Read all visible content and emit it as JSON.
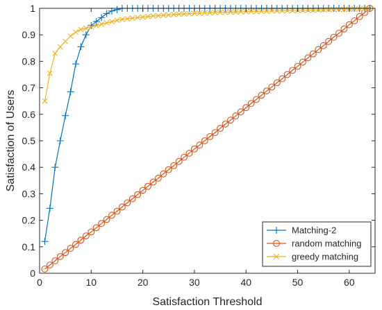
{
  "chart_data": {
    "type": "line",
    "xlabel": "Satisfaction Threshold",
    "ylabel": "Satisfaction of Users",
    "xlim": [
      0,
      65
    ],
    "ylim": [
      0,
      1
    ],
    "xticks": [
      0,
      10,
      20,
      30,
      40,
      50,
      60
    ],
    "yticks": [
      0,
      0.1,
      0.2,
      0.3,
      0.4,
      0.5,
      0.6,
      0.7,
      0.8,
      0.9,
      1
    ],
    "ytick_labels": [
      "0",
      "0.1",
      "0.2",
      "0.3",
      "0.4",
      "0.5",
      "0.6",
      "0.7",
      "0.8",
      "0.9",
      "1"
    ],
    "grid": false,
    "legend_position": "bottom-right",
    "series": [
      {
        "name": "Matching-2",
        "color": "#0072BD",
        "marker": "plus",
        "x": [
          1,
          2,
          3,
          4,
          5,
          6,
          7,
          8,
          9,
          10,
          11,
          12,
          13,
          14,
          15,
          16,
          17,
          18,
          19,
          20,
          21,
          22,
          23,
          24,
          25,
          26,
          27,
          28,
          29,
          30,
          31,
          32,
          33,
          34,
          35,
          36,
          37,
          38,
          39,
          40,
          41,
          42,
          43,
          44,
          45,
          46,
          47,
          48,
          49,
          50,
          51,
          52,
          53,
          54,
          55,
          56,
          57,
          58,
          59,
          60,
          61,
          62,
          63,
          64
        ],
        "y": [
          0.12,
          0.245,
          0.4,
          0.5,
          0.595,
          0.685,
          0.79,
          0.855,
          0.9,
          0.935,
          0.95,
          0.965,
          0.98,
          0.99,
          0.995,
          1,
          1,
          1,
          1,
          1,
          1,
          1,
          1,
          1,
          1,
          1,
          1,
          1,
          1,
          1,
          1,
          1,
          1,
          1,
          1,
          1,
          1,
          1,
          1,
          1,
          1,
          1,
          1,
          1,
          1,
          1,
          1,
          1,
          1,
          1,
          1,
          1,
          1,
          1,
          1,
          1,
          1,
          1,
          1,
          1,
          1,
          1,
          1,
          1
        ]
      },
      {
        "name": "random matching",
        "color": "#D95319",
        "marker": "circle",
        "x": [
          1,
          2,
          3,
          4,
          5,
          6,
          7,
          8,
          9,
          10,
          11,
          12,
          13,
          14,
          15,
          16,
          17,
          18,
          19,
          20,
          21,
          22,
          23,
          24,
          25,
          26,
          27,
          28,
          29,
          30,
          31,
          32,
          33,
          34,
          35,
          36,
          37,
          38,
          39,
          40,
          41,
          42,
          43,
          44,
          45,
          46,
          47,
          48,
          49,
          50,
          51,
          52,
          53,
          54,
          55,
          56,
          57,
          58,
          59,
          60,
          61,
          62,
          63,
          64
        ],
        "y": [
          0.016,
          0.031,
          0.047,
          0.063,
          0.078,
          0.094,
          0.109,
          0.125,
          0.141,
          0.156,
          0.172,
          0.188,
          0.203,
          0.219,
          0.234,
          0.25,
          0.266,
          0.281,
          0.297,
          0.313,
          0.328,
          0.344,
          0.359,
          0.375,
          0.391,
          0.406,
          0.422,
          0.438,
          0.453,
          0.469,
          0.484,
          0.5,
          0.516,
          0.531,
          0.547,
          0.563,
          0.578,
          0.594,
          0.609,
          0.625,
          0.641,
          0.656,
          0.672,
          0.688,
          0.703,
          0.719,
          0.734,
          0.75,
          0.766,
          0.781,
          0.797,
          0.813,
          0.828,
          0.844,
          0.859,
          0.875,
          0.891,
          0.906,
          0.922,
          0.938,
          0.953,
          0.969,
          0.984,
          1.0
        ]
      },
      {
        "name": "greedy matching",
        "color": "#EDB120",
        "marker": "x",
        "x": [
          1,
          2,
          3,
          4,
          5,
          6,
          7,
          8,
          9,
          10,
          11,
          12,
          13,
          14,
          15,
          16,
          17,
          18,
          19,
          20,
          21,
          22,
          23,
          24,
          25,
          26,
          27,
          28,
          29,
          30,
          31,
          32,
          33,
          34,
          35,
          36,
          37,
          38,
          39,
          40,
          41,
          42,
          43,
          44,
          45,
          46,
          47,
          48,
          49,
          50,
          51,
          52,
          53,
          54,
          55,
          56,
          57,
          58,
          59,
          60,
          61,
          62,
          63,
          64
        ],
        "y": [
          0.65,
          0.755,
          0.83,
          0.855,
          0.875,
          0.895,
          0.91,
          0.92,
          0.925,
          0.93,
          0.935,
          0.94,
          0.945,
          0.95,
          0.955,
          0.958,
          0.961,
          0.963,
          0.965,
          0.967,
          0.969,
          0.971,
          0.972,
          0.974,
          0.975,
          0.977,
          0.978,
          0.979,
          0.98,
          0.981,
          0.982,
          0.983,
          0.983,
          0.984,
          0.985,
          0.985,
          0.986,
          0.986,
          0.987,
          0.987,
          0.988,
          0.988,
          0.989,
          0.989,
          0.99,
          0.99,
          0.99,
          0.991,
          0.991,
          0.992,
          0.992,
          0.993,
          0.993,
          0.994,
          0.994,
          0.995,
          0.995,
          0.996,
          0.996,
          0.997,
          0.997,
          0.998,
          0.999,
          1.0
        ]
      }
    ]
  }
}
